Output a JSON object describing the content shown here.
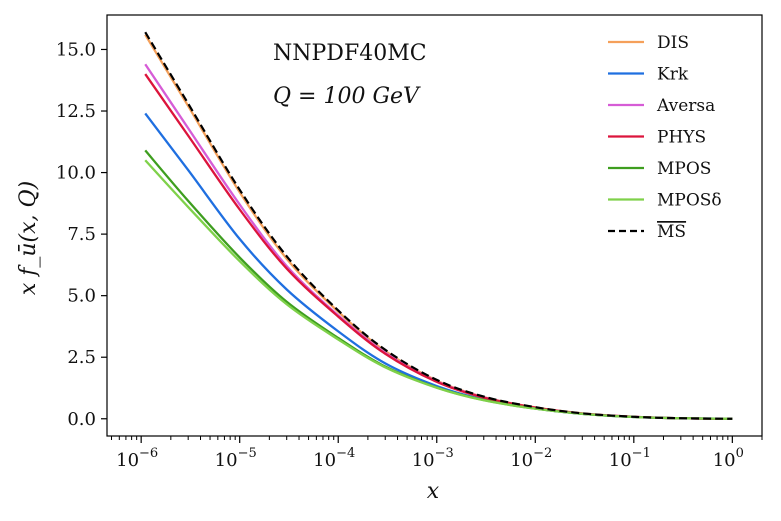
{
  "chart_data": {
    "type": "line",
    "title": "",
    "annotations": [
      "NNPDF40MC",
      "Q = 100 GeV"
    ],
    "xlabel": "x",
    "ylabel": "x f_ū(x, Q)",
    "xscale": "log",
    "xlim": [
      4.5e-07,
      2.0
    ],
    "ylim": [
      -0.7,
      16.4
    ],
    "x_ticks": [
      {
        "value": 1e-06,
        "base": "10",
        "exp": "−6"
      },
      {
        "value": 1e-05,
        "base": "10",
        "exp": "−5"
      },
      {
        "value": 0.0001,
        "base": "10",
        "exp": "−4"
      },
      {
        "value": 0.001,
        "base": "10",
        "exp": "−3"
      },
      {
        "value": 0.01,
        "base": "10",
        "exp": "−2"
      },
      {
        "value": 0.1,
        "base": "10",
        "exp": "−1"
      },
      {
        "value": 1,
        "base": "10",
        "exp": "0"
      }
    ],
    "y_ticks": [
      {
        "value": 0.0,
        "label": "0.0"
      },
      {
        "value": 2.5,
        "label": "2.5"
      },
      {
        "value": 5.0,
        "label": "5.0"
      },
      {
        "value": 7.5,
        "label": "7.5"
      },
      {
        "value": 10.0,
        "label": "10.0"
      },
      {
        "value": 12.5,
        "label": "12.5"
      },
      {
        "value": 15.0,
        "label": "15.0"
      }
    ],
    "legend_position": "top-right",
    "x": [
      1.1e-06,
      3e-06,
      1e-05,
      3e-05,
      0.0001,
      0.0003,
      0.001,
      0.003,
      0.01,
      0.03,
      0.1,
      0.3,
      1
    ],
    "series": [
      {
        "name": "DIS",
        "color": "#f5a05a",
        "dash": "solid",
        "values": [
          15.6,
          12.7,
          9.2,
          6.5,
          4.35,
          2.75,
          1.55,
          0.88,
          0.46,
          0.22,
          0.08,
          0.02,
          0.0
        ]
      },
      {
        "name": "Krk",
        "color": "#1f6fe0",
        "dash": "solid",
        "values": [
          12.4,
          10.1,
          7.3,
          5.25,
          3.55,
          2.25,
          1.33,
          0.78,
          0.42,
          0.2,
          0.075,
          0.02,
          0.0
        ]
      },
      {
        "name": "Aversa",
        "color": "#d65cd6",
        "dash": "solid",
        "values": [
          14.4,
          11.8,
          8.7,
          6.2,
          4.2,
          2.68,
          1.52,
          0.87,
          0.45,
          0.21,
          0.08,
          0.02,
          0.0
        ]
      },
      {
        "name": "PHYS",
        "color": "#dc143c",
        "dash": "solid",
        "values": [
          14.0,
          11.5,
          8.5,
          6.1,
          4.15,
          2.64,
          1.5,
          0.86,
          0.45,
          0.21,
          0.08,
          0.02,
          0.0
        ]
      },
      {
        "name": "MPOS",
        "color": "#3e9e1f",
        "dash": "solid",
        "values": [
          10.9,
          8.85,
          6.55,
          4.75,
          3.28,
          2.12,
          1.27,
          0.76,
          0.41,
          0.2,
          0.075,
          0.02,
          0.0
        ]
      },
      {
        "name": "MPOSδ",
        "color": "#7fd14a",
        "dash": "solid",
        "values": [
          10.5,
          8.6,
          6.4,
          4.65,
          3.22,
          2.09,
          1.26,
          0.75,
          0.41,
          0.2,
          0.075,
          0.02,
          0.0
        ]
      },
      {
        "name": "MS",
        "color": "#000000",
        "dash": "dashed",
        "overline": true,
        "values": [
          15.7,
          12.8,
          9.3,
          6.6,
          4.4,
          2.8,
          1.58,
          0.9,
          0.47,
          0.22,
          0.08,
          0.02,
          0.0
        ]
      }
    ]
  }
}
